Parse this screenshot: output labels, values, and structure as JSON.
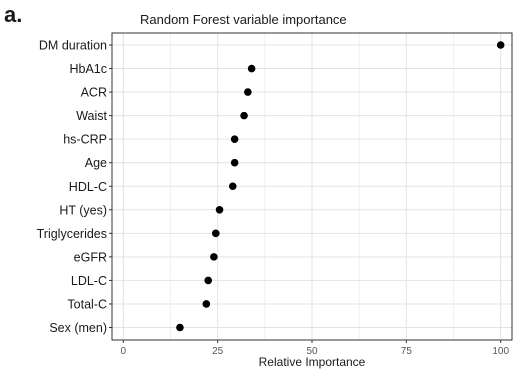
{
  "panel_label": "a.",
  "chart_data": {
    "type": "scatter",
    "title": "Random Forest variable importance",
    "xlabel": "Relative Importance",
    "ylabel": "",
    "xlim": [
      -3,
      103
    ],
    "xticks": [
      0,
      25,
      50,
      75,
      100
    ],
    "grid": true,
    "categories": [
      "DM duration",
      "HbA1c",
      "ACR",
      "Waist",
      "hs-CRP",
      "Age",
      "HDL-C",
      "HT (yes)",
      "Triglycerides",
      "eGFR",
      "LDL-C",
      "Total-C",
      "Sex (men)"
    ],
    "values": [
      100,
      34,
      33,
      32,
      29.5,
      29.5,
      29,
      25.5,
      24.5,
      24,
      22.5,
      22,
      15
    ],
    "marker_color": "#000000"
  }
}
